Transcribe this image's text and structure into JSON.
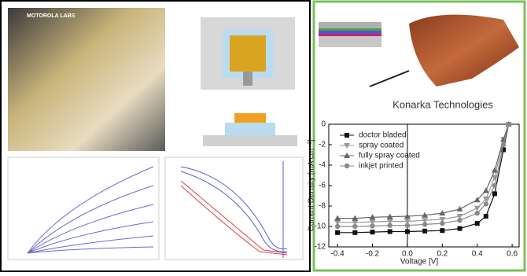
{
  "photos": {
    "left_logo": "MOTOROLA LABS",
    "right_caption": "Konarka Technologies"
  },
  "chart_data": {
    "type": "line",
    "xlabel": "Voltage [V]",
    "ylabel": "Current Density [mA cm⁻²]",
    "x": [
      -0.4,
      -0.3,
      -0.2,
      -0.1,
      0,
      0.1,
      0.2,
      0.3,
      0.4,
      0.45,
      0.5,
      0.55,
      0.58
    ],
    "series": [
      {
        "name": "doctor bladed",
        "color": "#111111",
        "marker": "square",
        "values": [
          -10.6,
          -10.6,
          -10.55,
          -10.5,
          -10.5,
          -10.45,
          -10.4,
          -10.2,
          -9.7,
          -9.0,
          -6.8,
          -2.5,
          0
        ]
      },
      {
        "name": "spray coated",
        "color": "#9a9a9a",
        "marker": "triangle-down",
        "values": [
          -9.6,
          -9.6,
          -9.55,
          -9.5,
          -9.5,
          -9.4,
          -9.3,
          -9.0,
          -8.2,
          -7.3,
          -5.2,
          -1.5,
          0
        ]
      },
      {
        "name": "fully spray coated",
        "color": "#666666",
        "marker": "triangle-up",
        "values": [
          -9.2,
          -9.2,
          -9.1,
          -9.05,
          -9.0,
          -8.9,
          -8.7,
          -8.3,
          -7.4,
          -6.5,
          -4.5,
          -1.5,
          0
        ]
      },
      {
        "name": "inkjet printed",
        "color": "#8a8a8a",
        "marker": "circle",
        "values": [
          -10.0,
          -10.0,
          -9.95,
          -9.9,
          -9.9,
          -9.8,
          -9.7,
          -9.4,
          -8.7,
          -7.8,
          -6.0,
          -2.0,
          0
        ]
      }
    ],
    "xlim": [
      -0.45,
      0.64
    ],
    "ylim": [
      -12,
      0
    ],
    "xticks": [
      -0.4,
      -0.2,
      {
        "value": 0,
        "label": "0.0"
      },
      0.2,
      0.4,
      0.6
    ],
    "yticks": [
      -12,
      -10,
      -8,
      -6,
      -4,
      -2,
      0
    ],
    "grid": false,
    "legend": "upper-left"
  }
}
